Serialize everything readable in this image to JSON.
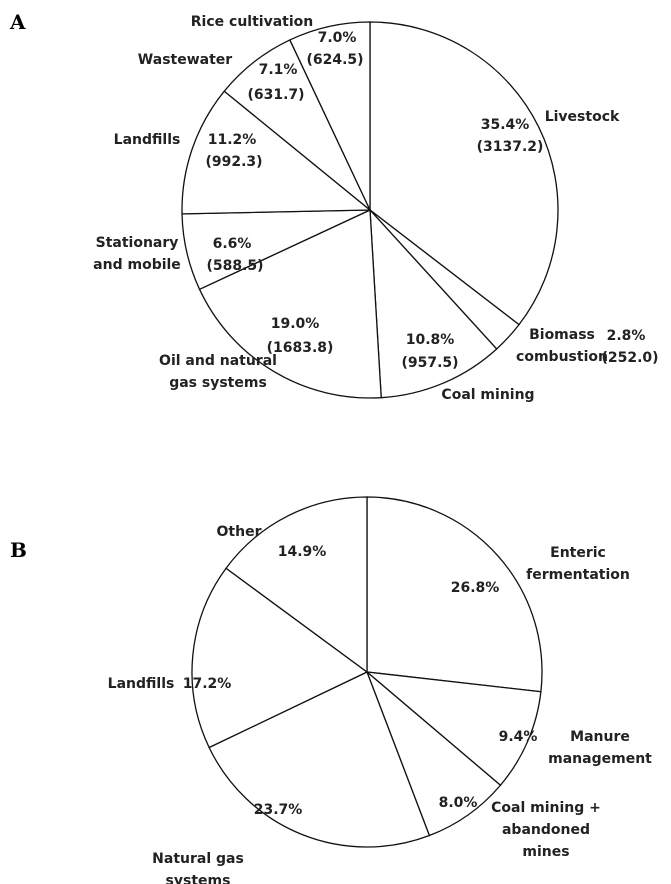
{
  "chart_data": [
    {
      "type": "pie",
      "panel": "A",
      "categories": [
        "Livestock",
        "Biomass combustion",
        "Coal mining",
        "Oil and natural gas systems",
        "Stationary and mobile",
        "Landfills",
        "Wastewater",
        "Rice cultivation"
      ],
      "values": [
        35.4,
        2.8,
        10.8,
        19.0,
        6.6,
        11.2,
        7.1,
        7.0
      ],
      "value_labels": [
        "35.4%",
        "2.8%",
        "10.8%",
        "19.0%",
        "6.6%",
        "11.2%",
        "7.1%",
        "7.0%"
      ],
      "amount_labels": [
        "(3137.2)",
        "(252.0)",
        "(957.5)",
        "(1683.8)",
        "(588.5)",
        "(992.3)",
        "(631.7)",
        "(624.5)"
      ],
      "color": "#ffffff"
    },
    {
      "type": "pie",
      "panel": "B",
      "categories": [
        "Enteric fermentation",
        "Manure management",
        "Coal mining + abandoned mines",
        "Natural gas systems",
        "Landfills",
        "Other"
      ],
      "values": [
        26.8,
        9.4,
        8.0,
        23.7,
        17.2,
        14.9
      ],
      "value_labels": [
        "26.8%",
        "9.4%",
        "8.0%",
        "23.7%",
        "17.2%",
        "14.9%"
      ],
      "color": "#ffffff"
    }
  ]
}
